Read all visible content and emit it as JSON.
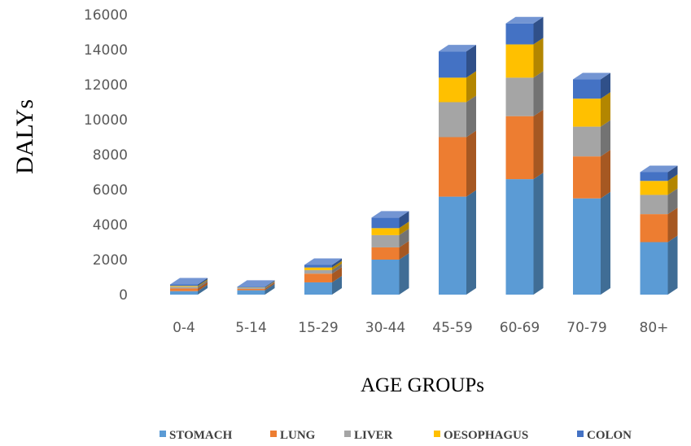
{
  "chart_data": {
    "type": "bar",
    "stacked": true,
    "style": "3d",
    "title": "",
    "xlabel": "AGE GROUPs",
    "ylabel": "DALYs",
    "ylim": [
      0,
      16000
    ],
    "yticks": [
      0,
      2000,
      4000,
      6000,
      8000,
      10000,
      12000,
      14000,
      16000
    ],
    "grid": false,
    "legend_position": "bottom",
    "categories": [
      "0-4",
      "5-14",
      "15-29",
      "30-44",
      "45-59",
      "60-69",
      "70-79",
      "80+"
    ],
    "series": [
      {
        "name": "STOMACH",
        "color": "#5B9BD5",
        "values": [
          200,
          250,
          700,
          2000,
          5600,
          6600,
          5500,
          3000
        ]
      },
      {
        "name": "LUNG",
        "color": "#ED7D31",
        "values": [
          150,
          80,
          500,
          700,
          3400,
          3600,
          2400,
          1600
        ]
      },
      {
        "name": "LIVER",
        "color": "#A5A5A5",
        "values": [
          100,
          50,
          200,
          700,
          2000,
          2200,
          1700,
          1100
        ]
      },
      {
        "name": "OESOPHAGUS",
        "color": "#FFC000",
        "values": [
          50,
          20,
          150,
          400,
          1400,
          1900,
          1600,
          800
        ]
      },
      {
        "name": "COLON",
        "color": "#4472C4",
        "values": [
          80,
          50,
          150,
          600,
          1500,
          1200,
          1100,
          500
        ]
      }
    ]
  }
}
